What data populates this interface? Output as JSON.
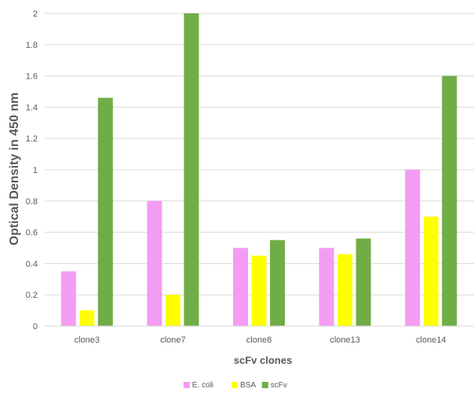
{
  "chart_data": {
    "type": "bar",
    "categories": [
      "clone3",
      "clone7",
      "clone8",
      "clone13",
      "clone14"
    ],
    "series": [
      {
        "name": "E. coli",
        "color": "#F49CF3",
        "values": [
          0.35,
          0.8,
          0.5,
          0.5,
          1.0
        ]
      },
      {
        "name": "BSA",
        "color": "#FFFF00",
        "values": [
          0.1,
          0.2,
          0.45,
          0.46,
          0.7
        ]
      },
      {
        "name": "scFv",
        "color": "#70AD47",
        "values": [
          1.46,
          2.0,
          0.55,
          0.56,
          1.6
        ]
      }
    ],
    "xlabel": "scFv clones",
    "ylabel": "Optical Density in 450 nm",
    "ylim": [
      0,
      2
    ],
    "yticks": [
      "0",
      "0.2",
      "0.4",
      "0.6",
      "0.8",
      "1",
      "1.2",
      "1.4",
      "1.6",
      "1.8",
      "2"
    ],
    "grid": true,
    "legend_position": "bottom"
  }
}
